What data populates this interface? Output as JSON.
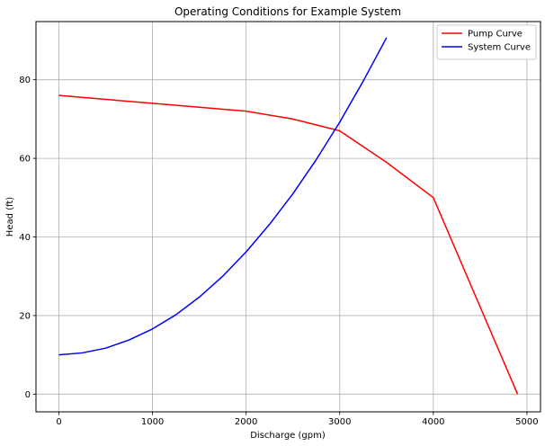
{
  "chart_data": {
    "type": "line",
    "title": "Operating Conditions for Example System",
    "xlabel": "Discharge (gpm)",
    "ylabel": "Head (ft)",
    "xlim": [
      -245,
      5145
    ],
    "ylim": [
      -4.5,
      94.8
    ],
    "xticks": [
      0,
      1000,
      2000,
      3000,
      4000,
      5000
    ],
    "yticks": [
      0,
      20,
      40,
      60,
      80
    ],
    "grid": true,
    "legend_position": "top-right",
    "series": [
      {
        "name": "Pump Curve",
        "color": "#ff0000",
        "x": [
          0,
          500,
          1000,
          1500,
          2000,
          2500,
          3000,
          3500,
          4000,
          4900
        ],
        "y": [
          76,
          75,
          74,
          73,
          72,
          70,
          67,
          59,
          50,
          0
        ]
      },
      {
        "name": "System Curve",
        "color": "#0000ff",
        "x": [
          0,
          250,
          500,
          750,
          1000,
          1250,
          1500,
          1750,
          2000,
          2250,
          2500,
          2750,
          3000,
          3250,
          3500
        ],
        "y": [
          10,
          10.5,
          11.7,
          13.8,
          16.6,
          20.2,
          24.7,
          30,
          36.2,
          43.2,
          51,
          59.7,
          69.2,
          79.6,
          90.7
        ]
      }
    ]
  }
}
